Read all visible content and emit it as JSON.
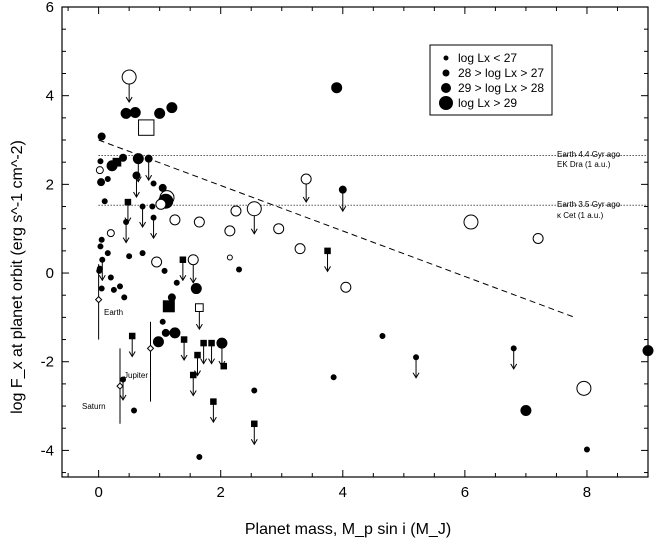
{
  "chart_data": {
    "type": "scatter",
    "xlabel": "Planet mass, M_p sin i (M_J)",
    "ylabel": "log F_x at planet orbit (erg s^-1 cm^-2)",
    "xlim": [
      -0.6,
      9.0
    ],
    "ylim": [
      -4.6,
      6.0
    ],
    "x_ticks": [
      0,
      2,
      4,
      6,
      8
    ],
    "y_ticks": [
      -4,
      -2,
      0,
      2,
      4,
      6
    ],
    "legend": {
      "position": "top-right",
      "entries": [
        {
          "label": "log Lx < 27",
          "size": 2.5
        },
        {
          "label": "28 > log Lx > 27",
          "size": 3.5
        },
        {
          "label": "29 > log Lx > 28",
          "size": 5
        },
        {
          "label": "log Lx > 29",
          "size": 7
        }
      ]
    },
    "reference_lines": [
      {
        "y": 2.65,
        "label_top": "Earth 4.4 Gyr ago",
        "label_bottom": "EK Dra (1 a.u.)"
      },
      {
        "y": 1.53,
        "label_top": "Earth 3.5 Gyr ago",
        "label_bottom": "κ Cet (1 a.u.)"
      }
    ],
    "trend_line": {
      "x": [
        0,
        7.8
      ],
      "y": [
        3.0,
        -1.0
      ]
    },
    "annotations": [
      {
        "text": "Earth",
        "x": 0.12,
        "y": -0.68
      },
      {
        "text": "Jupiter",
        "x": 0.65,
        "y": -2.15
      },
      {
        "text": "Saturn",
        "x": -0.45,
        "y": -2.85
      }
    ],
    "solar_system": [
      {
        "name": "Earth",
        "x": 0.0,
        "y": -0.6,
        "err_low": -1.5,
        "err_high": 0.2
      },
      {
        "name": "Jupiter",
        "x": 0.85,
        "y": -1.7,
        "err_low": -2.9,
        "err_high": -1.1
      },
      {
        "name": "Saturn",
        "x": 0.35,
        "y": -2.55,
        "err_low": -3.4,
        "err_high": -1.7
      }
    ],
    "points": [
      {
        "x": 0.5,
        "y": 4.42,
        "s": 4,
        "m": "co",
        "up": true
      },
      {
        "x": 0.78,
        "y": 3.28,
        "s": 4,
        "m": "so"
      },
      {
        "x": 0.6,
        "y": 3.62,
        "s": 3,
        "m": "c"
      },
      {
        "x": 1.2,
        "y": 3.73,
        "s": 3,
        "m": "c"
      },
      {
        "x": 1.0,
        "y": 3.6,
        "s": 3,
        "m": "c"
      },
      {
        "x": 0.45,
        "y": 3.6,
        "s": 3,
        "m": "c"
      },
      {
        "x": 3.9,
        "y": 4.18,
        "s": 3,
        "m": "c"
      },
      {
        "x": 0.05,
        "y": 3.08,
        "s": 2,
        "m": "c"
      },
      {
        "x": 0.4,
        "y": 2.6,
        "s": 2,
        "m": "c"
      },
      {
        "x": 0.65,
        "y": 2.58,
        "s": 3,
        "m": "c",
        "up": true
      },
      {
        "x": 0.82,
        "y": 2.58,
        "s": 2,
        "m": "c",
        "up": true
      },
      {
        "x": 0.3,
        "y": 2.5,
        "s": 2,
        "m": "s"
      },
      {
        "x": 0.22,
        "y": 2.42,
        "s": 3,
        "m": "c"
      },
      {
        "x": 0.03,
        "y": 2.52,
        "s": 1,
        "m": "c"
      },
      {
        "x": 0.15,
        "y": 2.12,
        "s": 1,
        "m": "c"
      },
      {
        "x": 0.02,
        "y": 2.32,
        "s": 2,
        "m": "co"
      },
      {
        "x": 0.04,
        "y": 2.05,
        "s": 2,
        "m": "c"
      },
      {
        "x": 0.62,
        "y": 2.2,
        "s": 2,
        "m": "c",
        "up": true
      },
      {
        "x": 0.9,
        "y": 2.02,
        "s": 1,
        "m": "c"
      },
      {
        "x": 3.4,
        "y": 2.12,
        "s": 3,
        "m": "co",
        "up": true
      },
      {
        "x": 4.0,
        "y": 1.88,
        "s": 2,
        "m": "c",
        "up": true
      },
      {
        "x": 0.1,
        "y": 1.62,
        "s": 1,
        "m": "c"
      },
      {
        "x": 0.48,
        "y": 1.6,
        "s": 1,
        "m": "s",
        "up": true
      },
      {
        "x": 0.72,
        "y": 1.5,
        "s": 1,
        "m": "c",
        "up": true
      },
      {
        "x": 1.05,
        "y": 1.92,
        "s": 2,
        "m": "c"
      },
      {
        "x": 1.12,
        "y": 1.7,
        "s": 4,
        "m": "co"
      },
      {
        "x": 1.1,
        "y": 1.62,
        "s": 4,
        "m": "c"
      },
      {
        "x": 1.02,
        "y": 1.55,
        "s": 3,
        "m": "co"
      },
      {
        "x": 0.88,
        "y": 1.5,
        "s": 1,
        "m": "c"
      },
      {
        "x": 0.9,
        "y": 1.25,
        "s": 1,
        "m": "c",
        "up": true
      },
      {
        "x": 1.25,
        "y": 1.2,
        "s": 3,
        "m": "co"
      },
      {
        "x": 1.65,
        "y": 1.15,
        "s": 3,
        "m": "co"
      },
      {
        "x": 2.25,
        "y": 1.4,
        "s": 3,
        "m": "co"
      },
      {
        "x": 2.55,
        "y": 1.45,
        "s": 4,
        "m": "co",
        "up": true
      },
      {
        "x": 2.15,
        "y": 0.95,
        "s": 3,
        "m": "co"
      },
      {
        "x": 2.95,
        "y": 1.0,
        "s": 3,
        "m": "co"
      },
      {
        "x": 3.3,
        "y": 0.55,
        "s": 3,
        "m": "co"
      },
      {
        "x": 3.75,
        "y": 0.5,
        "s": 1,
        "m": "s",
        "up": true
      },
      {
        "x": 4.05,
        "y": -0.32,
        "s": 3,
        "m": "co"
      },
      {
        "x": 6.1,
        "y": 1.15,
        "s": 4,
        "m": "co"
      },
      {
        "x": 7.2,
        "y": 0.78,
        "s": 3,
        "m": "co"
      },
      {
        "x": 0.45,
        "y": 1.15,
        "s": 1,
        "m": "c",
        "up": true
      },
      {
        "x": 0.2,
        "y": 0.9,
        "s": 2,
        "m": "co"
      },
      {
        "x": 0.05,
        "y": 0.75,
        "s": 1,
        "m": "c"
      },
      {
        "x": 0.03,
        "y": 0.6,
        "s": 1,
        "m": "c"
      },
      {
        "x": 0.06,
        "y": 0.3,
        "s": 1,
        "m": "c",
        "up": true
      },
      {
        "x": 0.02,
        "y": 0.1,
        "s": 1,
        "m": "c"
      },
      {
        "x": 0.01,
        "y": 0.05,
        "s": 1,
        "m": "c"
      },
      {
        "x": 0.15,
        "y": 0.45,
        "s": 1,
        "m": "c"
      },
      {
        "x": 0.72,
        "y": 0.45,
        "s": 1,
        "m": "c"
      },
      {
        "x": 0.5,
        "y": 0.38,
        "s": 1,
        "m": "c"
      },
      {
        "x": 0.95,
        "y": 0.25,
        "s": 3,
        "m": "co"
      },
      {
        "x": 1.38,
        "y": 0.3,
        "s": 1,
        "m": "s",
        "up": true
      },
      {
        "x": 1.55,
        "y": 0.3,
        "s": 3,
        "m": "co",
        "up": true
      },
      {
        "x": 2.15,
        "y": 0.35,
        "s": 1,
        "m": "co"
      },
      {
        "x": 2.3,
        "y": 0.08,
        "s": 1,
        "m": "c"
      },
      {
        "x": 1.08,
        "y": 0.05,
        "s": 1,
        "m": "c"
      },
      {
        "x": 0.05,
        "y": -0.35,
        "s": 1,
        "m": "c"
      },
      {
        "x": 0.2,
        "y": -0.1,
        "s": 1,
        "m": "c"
      },
      {
        "x": 0.25,
        "y": -0.38,
        "s": 1,
        "m": "c"
      },
      {
        "x": 0.35,
        "y": -0.3,
        "s": 1,
        "m": "c"
      },
      {
        "x": 0.42,
        "y": -0.55,
        "s": 1,
        "m": "c"
      },
      {
        "x": 1.28,
        "y": -0.22,
        "s": 1,
        "m": "c"
      },
      {
        "x": 1.2,
        "y": -0.55,
        "s": 2,
        "m": "c"
      },
      {
        "x": 1.6,
        "y": -0.35,
        "s": 3,
        "m": "c"
      },
      {
        "x": 1.65,
        "y": -0.78,
        "s": 2,
        "m": "so",
        "up": true
      },
      {
        "x": 1.15,
        "y": -0.75,
        "s": 3,
        "m": "s"
      },
      {
        "x": 1.05,
        "y": -1.1,
        "s": 1,
        "m": "c"
      },
      {
        "x": 1.1,
        "y": -1.35,
        "s": 2,
        "m": "c"
      },
      {
        "x": 0.98,
        "y": -1.55,
        "s": 3,
        "m": "c"
      },
      {
        "x": 1.25,
        "y": -1.35,
        "s": 3,
        "m": "c"
      },
      {
        "x": 1.4,
        "y": -1.5,
        "s": 1,
        "m": "s",
        "up": true
      },
      {
        "x": 0.55,
        "y": -1.42,
        "s": 1,
        "m": "s",
        "up": true
      },
      {
        "x": 1.62,
        "y": -1.85,
        "s": 1,
        "m": "s",
        "up": true
      },
      {
        "x": 1.72,
        "y": -1.58,
        "s": 1,
        "m": "s",
        "up": true
      },
      {
        "x": 1.85,
        "y": -1.58,
        "s": 1,
        "m": "s",
        "up": true
      },
      {
        "x": 2.02,
        "y": -1.58,
        "s": 3,
        "m": "c",
        "up": true
      },
      {
        "x": 1.55,
        "y": -2.3,
        "s": 1,
        "m": "s",
        "up": true
      },
      {
        "x": 2.05,
        "y": -2.1,
        "s": 1,
        "m": "s"
      },
      {
        "x": 1.88,
        "y": -2.9,
        "s": 1,
        "m": "s",
        "up": true
      },
      {
        "x": 2.55,
        "y": -2.65,
        "s": 1,
        "m": "c"
      },
      {
        "x": 2.55,
        "y": -3.4,
        "s": 1,
        "m": "s",
        "up": true
      },
      {
        "x": 1.65,
        "y": -4.15,
        "s": 1,
        "m": "c"
      },
      {
        "x": 0.58,
        "y": -3.1,
        "s": 1,
        "m": "c"
      },
      {
        "x": 0.4,
        "y": -2.4,
        "s": 1,
        "m": "c",
        "up": true
      },
      {
        "x": 3.85,
        "y": -2.35,
        "s": 1,
        "m": "c"
      },
      {
        "x": 4.65,
        "y": -1.42,
        "s": 1,
        "m": "c"
      },
      {
        "x": 5.2,
        "y": -1.9,
        "s": 1,
        "m": "c",
        "up": true
      },
      {
        "x": 6.8,
        "y": -1.7,
        "s": 1,
        "m": "c",
        "up": true
      },
      {
        "x": 7.0,
        "y": -3.1,
        "s": 3,
        "m": "c"
      },
      {
        "x": 7.95,
        "y": -2.6,
        "s": 4,
        "m": "co"
      },
      {
        "x": 8.0,
        "y": -3.98,
        "s": 1,
        "m": "c"
      },
      {
        "x": 9.0,
        "y": -1.75,
        "s": 3,
        "m": "c"
      }
    ]
  }
}
